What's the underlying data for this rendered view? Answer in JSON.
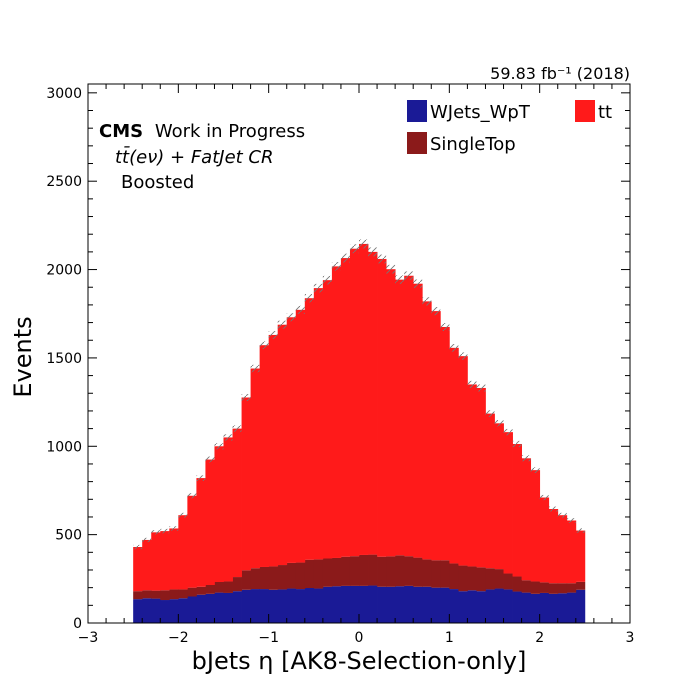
{
  "chart_data": {
    "type": "bar",
    "stacked": true,
    "lumi_label": "59.83 fb⁻¹ (2018)",
    "annotation": {
      "cms": "CMS",
      "status": "Work in Progress",
      "region": "tt̄(eν) + FatJet CR",
      "category": "Boosted"
    },
    "xlabel": "bJets η [AK8-Selection-only]",
    "ylabel": "Events",
    "xlim": [
      -3,
      3
    ],
    "ylim": [
      0,
      3050
    ],
    "xticks": [
      -3,
      -2,
      -1,
      0,
      1,
      2,
      3
    ],
    "xtick_labels": [
      "−3",
      "−2",
      "−1",
      "0",
      "1",
      "2",
      "3"
    ],
    "yticks": [
      0,
      500,
      1000,
      1500,
      2000,
      2500,
      3000
    ],
    "ytick_labels": [
      "0",
      "500",
      "1000",
      "1500",
      "2000",
      "2500",
      "3000"
    ],
    "bin_edges": [
      -2.5,
      -2.4,
      -2.3,
      -2.2,
      -2.1,
      -2.0,
      -1.9,
      -1.8,
      -1.7,
      -1.6,
      -1.5,
      -1.4,
      -1.3,
      -1.2,
      -1.1,
      -1.0,
      -0.9,
      -0.8,
      -0.7,
      -0.6,
      -0.5,
      -0.4,
      -0.3,
      -0.2,
      -0.1,
      0.0,
      0.1,
      0.2,
      0.3,
      0.4,
      0.5,
      0.6,
      0.7,
      0.8,
      0.9,
      1.0,
      1.1,
      1.2,
      1.3,
      1.4,
      1.5,
      1.6,
      1.7,
      1.8,
      1.9,
      2.0,
      2.1,
      2.2,
      2.3,
      2.4,
      2.5
    ],
    "legend": [
      {
        "name": "WJets_WpT",
        "color": "#1a1a96"
      },
      {
        "name": "tt",
        "color": "#ff1a1a"
      },
      {
        "name": "SingleTop",
        "color": "#8b1a1a"
      }
    ],
    "series": [
      {
        "name": "WJets_WpT",
        "color": "#1a1a96",
        "values": [
          135,
          140,
          138,
          130,
          135,
          140,
          150,
          160,
          165,
          172,
          170,
          180,
          188,
          192,
          192,
          188,
          190,
          195,
          192,
          198,
          195,
          205,
          208,
          210,
          210,
          210,
          212,
          205,
          205,
          208,
          210,
          205,
          205,
          200,
          200,
          192,
          180,
          185,
          180,
          190,
          195,
          190,
          178,
          172,
          165,
          170,
          165,
          168,
          172,
          188
        ]
      },
      {
        "name": "SingleTop",
        "color": "#8b1a1a",
        "values": [
          45,
          45,
          45,
          55,
          55,
          50,
          50,
          45,
          50,
          60,
          65,
          80,
          110,
          118,
          125,
          132,
          138,
          145,
          150,
          160,
          165,
          160,
          160,
          165,
          168,
          175,
          175,
          170,
          172,
          175,
          168,
          165,
          155,
          155,
          155,
          145,
          145,
          135,
          135,
          120,
          110,
          90,
          85,
          70,
          70,
          60,
          60,
          57,
          53,
          45
        ]
      },
      {
        "name": "tt",
        "color": "#ff1a1a",
        "values": [
          250,
          285,
          330,
          335,
          345,
          420,
          520,
          615,
          710,
          768,
          815,
          840,
          978,
          1130,
          1255,
          1310,
          1360,
          1390,
          1430,
          1480,
          1535,
          1575,
          1650,
          1690,
          1740,
          1760,
          1713,
          1685,
          1625,
          1560,
          1587,
          1550,
          1460,
          1410,
          1320,
          1220,
          1185,
          1030,
          1015,
          875,
          825,
          800,
          750,
          690,
          630,
          480,
          420,
          385,
          355,
          290
        ]
      }
    ],
    "uncertainty_band": "hatched"
  }
}
